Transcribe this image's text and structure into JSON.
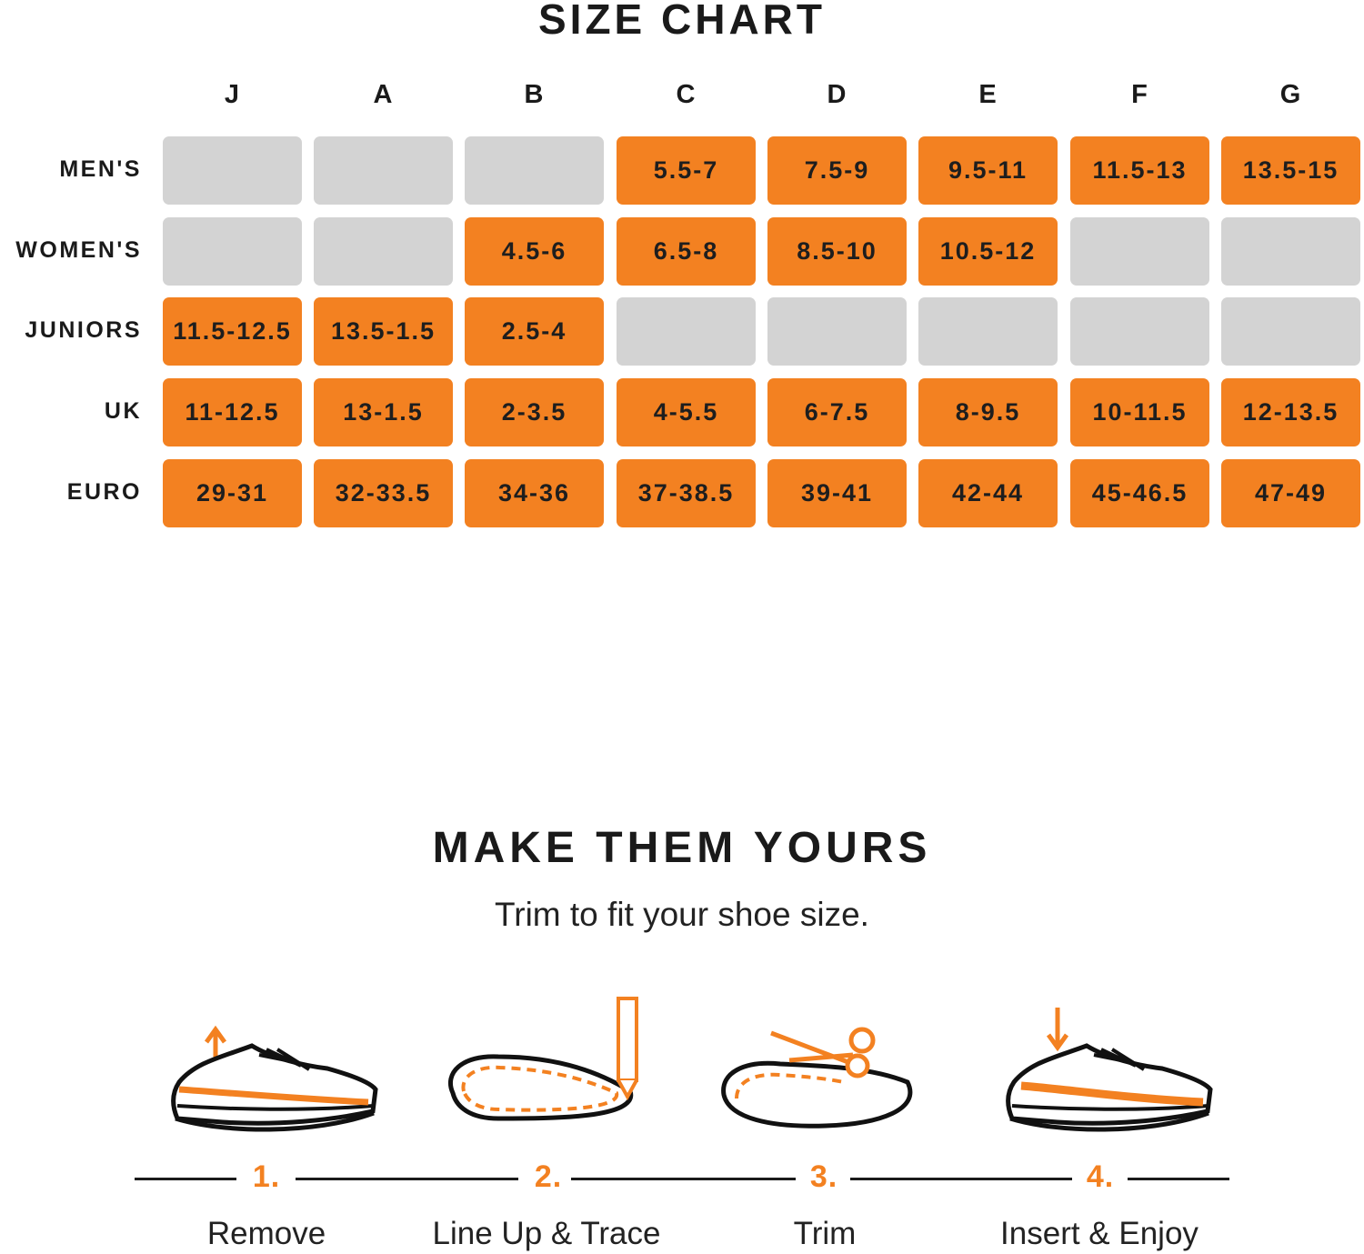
{
  "size_chart": {
    "title": "SIZE CHART",
    "columns": [
      "J",
      "A",
      "B",
      "C",
      "D",
      "E",
      "F",
      "G"
    ],
    "rows": [
      {
        "label": "MEN'S",
        "cells": [
          "",
          "",
          "",
          "5.5-7",
          "7.5-9",
          "9.5-11",
          "11.5-13",
          "13.5-15"
        ]
      },
      {
        "label": "WOMEN'S",
        "cells": [
          "",
          "",
          "4.5-6",
          "6.5-8",
          "8.5-10",
          "10.5-12",
          "",
          ""
        ]
      },
      {
        "label": "JUNIORS",
        "cells": [
          "11.5-12.5",
          "13.5-1.5",
          "2.5-4",
          "",
          "",
          "",
          "",
          ""
        ]
      },
      {
        "label": "UK",
        "cells": [
          "11-12.5",
          "13-1.5",
          "2-3.5",
          "4-5.5",
          "6-7.5",
          "8-9.5",
          "10-11.5",
          "12-13.5"
        ]
      },
      {
        "label": "EURO",
        "cells": [
          "29-31",
          "32-33.5",
          "34-36",
          "37-38.5",
          "39-41",
          "42-44",
          "45-46.5",
          "47-49"
        ]
      }
    ]
  },
  "make_them_yours": {
    "title": "MAKE THEM YOURS",
    "subtitle": "Trim to fit your shoe size.",
    "steps": [
      {
        "number": "1.",
        "label": "Remove",
        "icon": "shoe-arrow-up-icon"
      },
      {
        "number": "2.",
        "label": "Line Up & Trace",
        "icon": "insole-pencil-icon"
      },
      {
        "number": "3.",
        "label": "Trim",
        "icon": "insole-scissors-icon"
      },
      {
        "number": "4.",
        "label": "Insert & Enjoy",
        "icon": "shoe-arrow-down-icon"
      }
    ]
  },
  "colors": {
    "accent": "#f38121",
    "empty": "#d3d3d3",
    "text": "#1a1a1a"
  }
}
